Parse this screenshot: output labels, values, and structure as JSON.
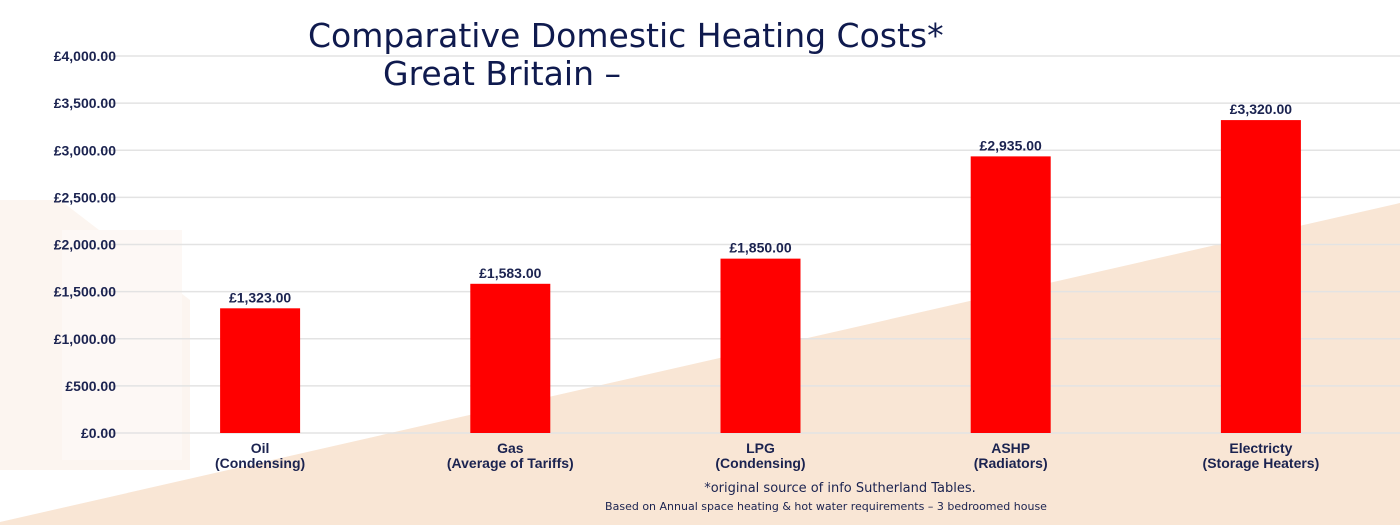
{
  "chart_data": {
    "type": "bar",
    "title": "Comparative Domestic Heating Costs*",
    "subtitle": "Great Britain –",
    "categories": [
      [
        "Oil",
        "(Condensing)"
      ],
      [
        "Gas",
        "(Average of Tariffs)"
      ],
      [
        "LPG",
        "(Condensing)"
      ],
      [
        "ASHP",
        "(Radiators)"
      ],
      [
        "Electricty",
        "(Storage Heaters)"
      ]
    ],
    "values": [
      1323,
      1583,
      1850,
      2935,
      3320
    ],
    "data_labels": [
      "£1,323.00",
      "£1,583.00",
      "£1,850.00",
      "£2,935.00",
      "£3,320.00"
    ],
    "yticks": [
      0,
      500,
      1000,
      1500,
      2000,
      2500,
      3000,
      3500,
      4000
    ],
    "ytick_labels": [
      "£0.00",
      "£500.00",
      "£1,000.00",
      "£1,500.00",
      "£2,000.00",
      "£2,500.00",
      "£3,000.00",
      "£3,500.00",
      "£4,000.00"
    ],
    "ylim": [
      0,
      4000
    ],
    "xlabel": "",
    "ylabel": "",
    "grid": true,
    "bar_color": "#ff0000"
  },
  "footnotes": {
    "source": "*original source of info Sutherland Tables.",
    "basis": "Based on Annual space heating & hot water requirements – 3 bedroomed house"
  }
}
